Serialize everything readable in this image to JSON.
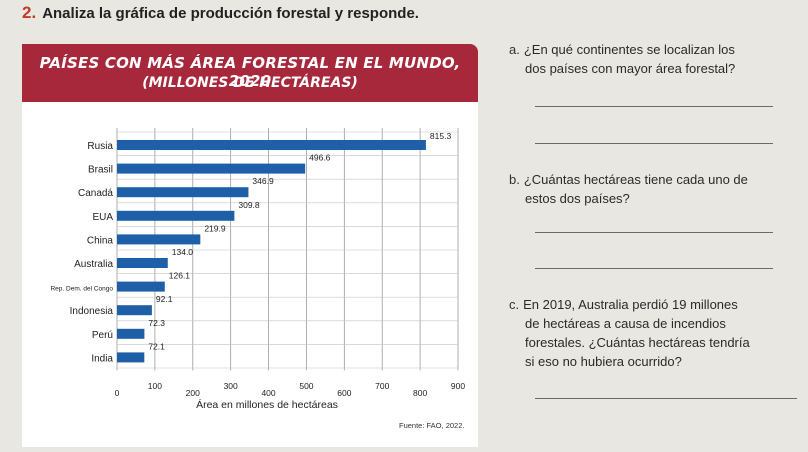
{
  "heading": {
    "number": "2.",
    "text": "Analiza la gráfica de producción forestal y responde."
  },
  "banner": {
    "title": "PAÍSES CON MÁS ÁREA FORESTAL EN EL MUNDO, 2020",
    "subtitle": "(MILLONES DE HECTÁREAS)"
  },
  "source": "Fuente: FAO, 2022.",
  "colors": {
    "bar": "#1f5fa8",
    "banner": "#a8283b"
  },
  "chart_data": {
    "type": "bar",
    "orientation": "horizontal",
    "categories": [
      "Rusia",
      "Brasil",
      "Canadá",
      "EUA",
      "China",
      "Australia",
      "Rep. Dem. del Congo",
      "Indonesia",
      "Perú",
      "India"
    ],
    "values": [
      815.3,
      496.6,
      346.9,
      309.8,
      219.9,
      134.0,
      126.1,
      92.1,
      72.3,
      72.1
    ],
    "value_labels": [
      "815.3",
      "496.6",
      "346.9",
      "309.8",
      "219.9",
      "134.0",
      "126.1",
      "92.1",
      "72.3",
      "72.1"
    ],
    "x_ticks": [
      "0",
      "100",
      "200",
      "300",
      "400",
      "500",
      "600",
      "700",
      "800",
      "900"
    ],
    "xlabel": "Área en millones de hectáreas",
    "xlim": [
      0,
      900
    ],
    "grid": true
  },
  "questions": [
    {
      "letter": "a.",
      "lines": [
        "¿En qué continentes se localizan los",
        "dos países con mayor área forestal?"
      ]
    },
    {
      "letter": "b.",
      "lines": [
        "¿Cuántas hectáreas tiene cada uno de",
        "estos dos países?"
      ]
    },
    {
      "letter": "c.",
      "lines": [
        "En 2019, Australia perdió 19 millones",
        "de hectáreas a causa de incendios",
        "forestales. ¿Cuántas hectáreas tendría",
        "si eso no hubiera ocurrido?"
      ]
    }
  ]
}
